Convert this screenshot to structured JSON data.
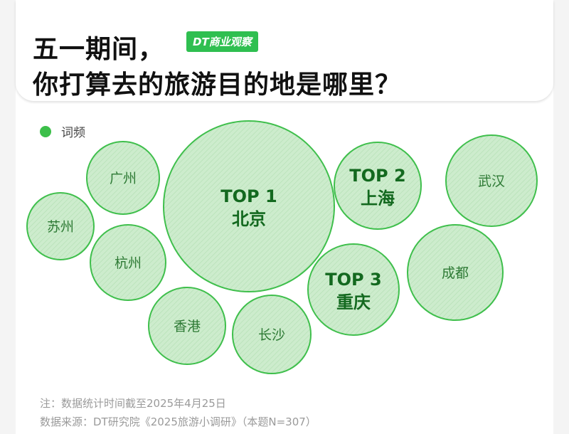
{
  "header": {
    "title_line1": "五一期间，",
    "title_line2": "你打算去的旅游目的地是哪里？",
    "brand": "DT商业观察"
  },
  "legend": {
    "label": "词频",
    "color": "#3cbf4a"
  },
  "chart_data": {
    "type": "bubble",
    "title": "五一期间，你打算去的旅游目的地是哪里？",
    "legend": [
      "词频"
    ],
    "items": [
      {
        "name": "北京",
        "rank_label": "TOP 1",
        "rank": 1,
        "emphasis": true
      },
      {
        "name": "上海",
        "rank_label": "TOP 2",
        "rank": 2,
        "emphasis": true
      },
      {
        "name": "重庆",
        "rank_label": "TOP 3",
        "rank": 3,
        "emphasis": true
      },
      {
        "name": "武汉",
        "rank_label": "",
        "emphasis": false
      },
      {
        "name": "成都",
        "rank_label": "",
        "emphasis": false
      },
      {
        "name": "广州",
        "rank_label": "",
        "emphasis": false
      },
      {
        "name": "苏州",
        "rank_label": "",
        "emphasis": false
      },
      {
        "name": "杭州",
        "rank_label": "",
        "emphasis": false
      },
      {
        "name": "香港",
        "rank_label": "",
        "emphasis": false
      },
      {
        "name": "长沙",
        "rank_label": "",
        "emphasis": false
      }
    ]
  },
  "colors": {
    "bubble_fill": "#cdeccd",
    "bubble_stroke": "#3fbf4c",
    "top_text": "#13691f",
    "normal_text": "#2e7a35"
  },
  "footnotes": {
    "note": "注：数据统计时间截至2025年4月25日",
    "source": "数据来源：DT研究院《2025旅游小调研》（本题N=307）"
  },
  "watermark": "DT商业观察"
}
